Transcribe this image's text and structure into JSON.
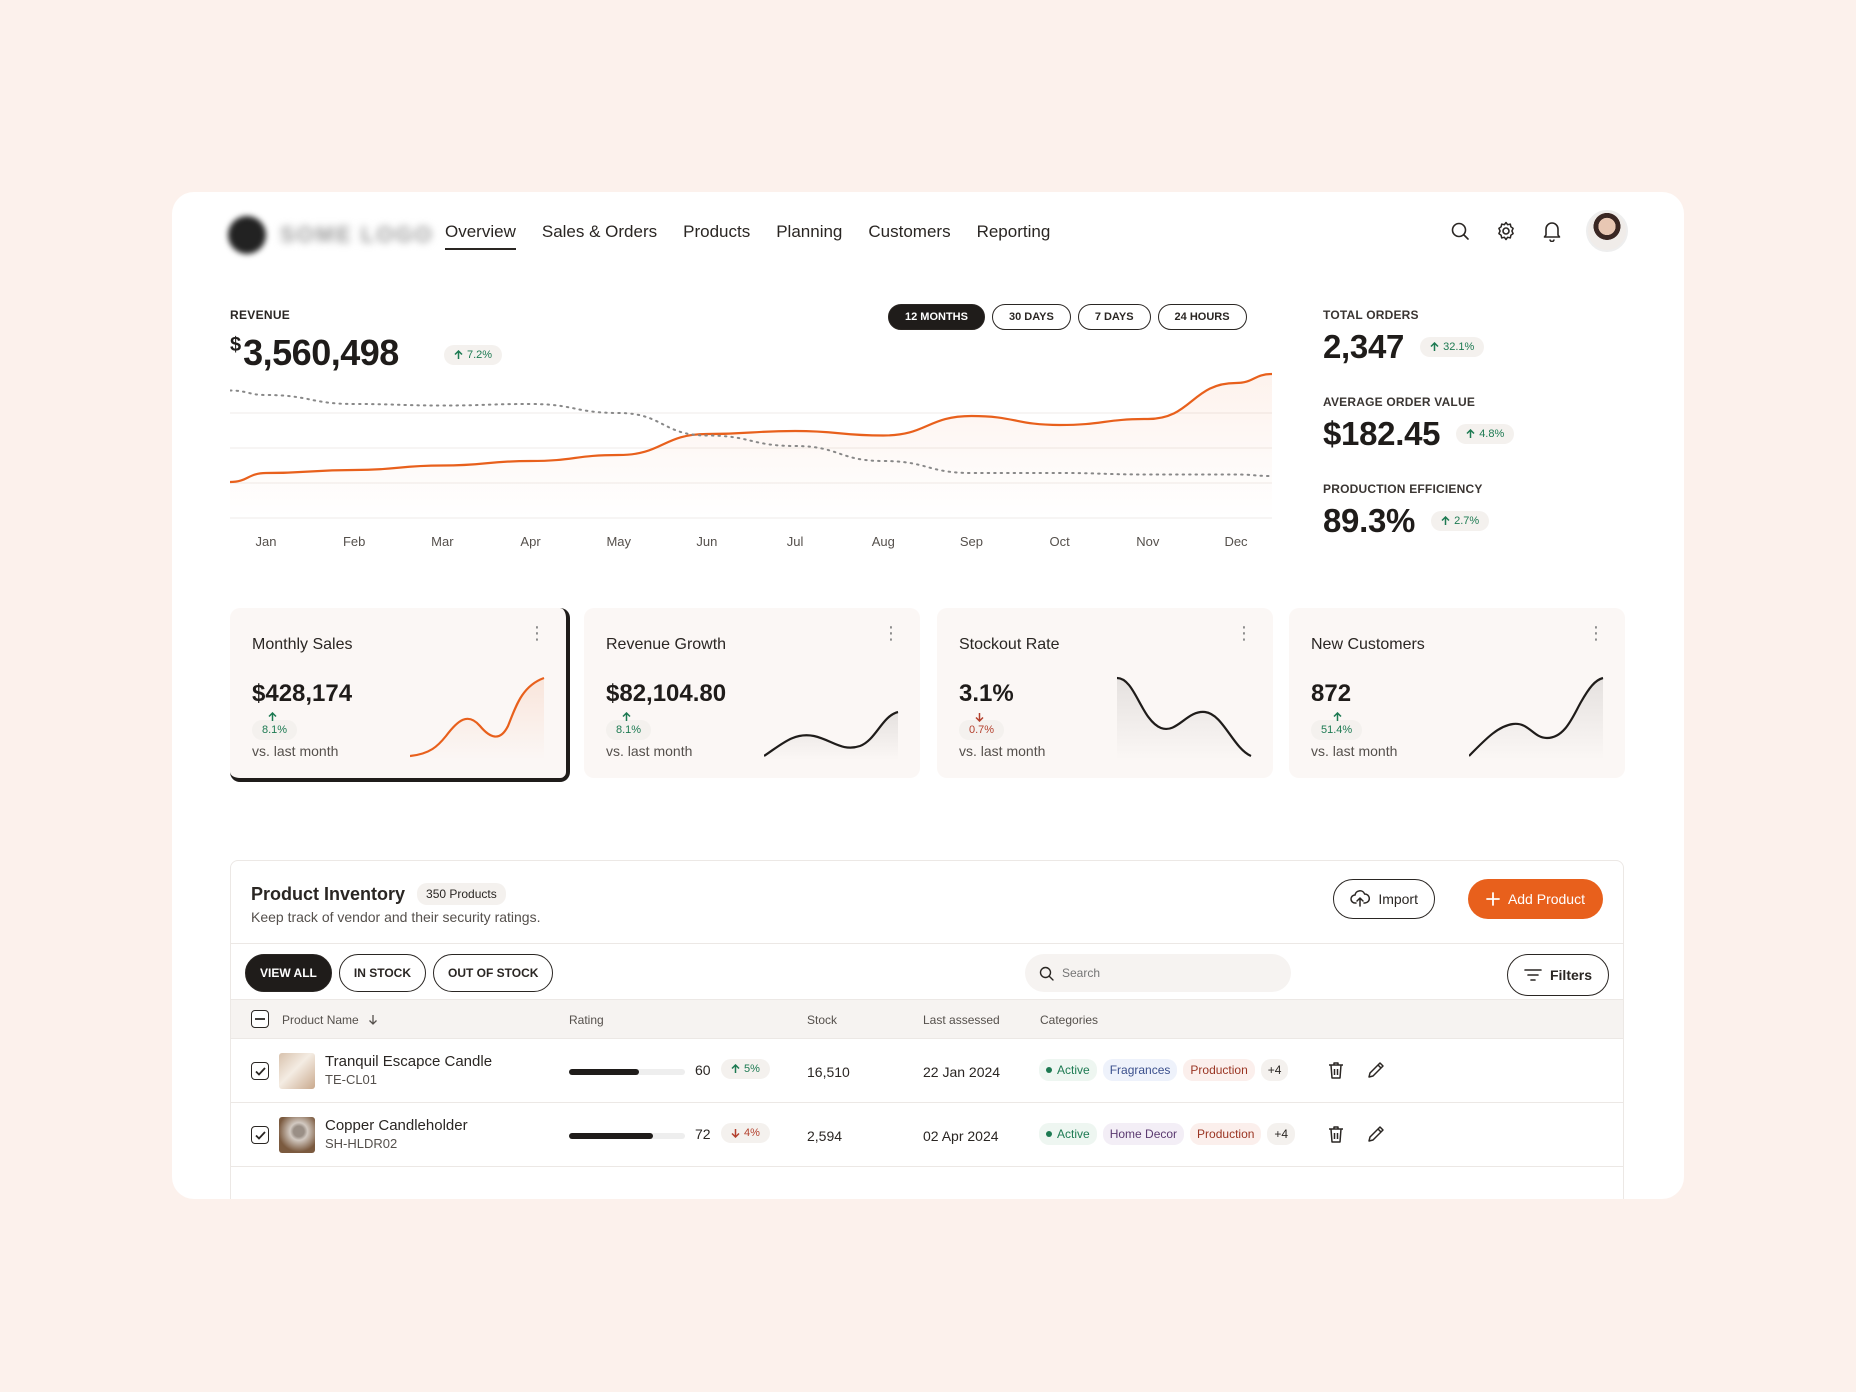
{
  "nav": {
    "items": [
      {
        "label": "Overview",
        "active": true
      },
      {
        "label": "Sales & Orders"
      },
      {
        "label": "Products"
      },
      {
        "label": "Planning"
      },
      {
        "label": "Customers"
      },
      {
        "label": "Reporting"
      }
    ],
    "icons": [
      "search-icon",
      "gear-icon",
      "bell-icon"
    ]
  },
  "revenue": {
    "label": "REVENUE",
    "currency": "$",
    "value": "3,560,498",
    "change": "7.2%",
    "ranges": [
      "12 MONTHS",
      "30 DAYS",
      "7 DAYS",
      "24 HOURS"
    ],
    "active_range": "12 MONTHS"
  },
  "chart_data": {
    "type": "line",
    "categories": [
      "Jan",
      "Feb",
      "Mar",
      "Apr",
      "May",
      "Jun",
      "Jul",
      "Aug",
      "Sep",
      "Oct",
      "Nov",
      "Dec"
    ],
    "series": [
      {
        "style": "solid",
        "color": "#e8601c",
        "values": [
          30,
          32,
          35,
          38,
          42,
          56,
          58,
          55,
          68,
          62,
          66,
          90
        ]
      },
      {
        "style": "dotted",
        "color": "#888888",
        "values": [
          82,
          76,
          75,
          76,
          70,
          55,
          48,
          38,
          30,
          30,
          29,
          29
        ]
      }
    ],
    "grid": true
  },
  "stats": [
    {
      "label": "TOTAL ORDERS",
      "value": "2,347",
      "change": "32.1%"
    },
    {
      "label": "AVERAGE ORDER VALUE",
      "value": "$182.45",
      "change": "4.8%"
    },
    {
      "label": "PRODUCTION EFFICIENCY",
      "value": "89.3%",
      "change": "2.7%"
    }
  ],
  "cards": [
    {
      "title": "Monthly Sales",
      "value": "$428,174",
      "change": "8.1%",
      "direction": "up",
      "sub": "vs. last month",
      "color": "#e8601c"
    },
    {
      "title": "Revenue Growth",
      "value": "$82,104.80",
      "change": "8.1%",
      "direction": "up",
      "sub": "vs. last month",
      "color": "#1f1c1a"
    },
    {
      "title": "Stockout Rate",
      "value": "3.1%",
      "change": "0.7%",
      "direction": "down",
      "sub": "vs. last month",
      "color": "#1f1c1a"
    },
    {
      "title": "New Customers",
      "value": "872",
      "change": "51.4%",
      "direction": "up",
      "sub": "vs. last month",
      "color": "#1f1c1a"
    }
  ],
  "inventory": {
    "title": "Product Inventory",
    "count": "350 Products",
    "subtitle": "Keep track of vendor and their security ratings.",
    "import_label": "Import",
    "add_label": "Add Product",
    "filters": [
      "VIEW ALL",
      "IN STOCK",
      "OUT OF STOCK"
    ],
    "search_placeholder": "Search",
    "filters_label": "Filters",
    "columns": [
      "Product Name",
      "Rating",
      "Stock",
      "Last assessed",
      "Categories"
    ],
    "rows": [
      {
        "name": "Tranquil Escapce Candle",
        "sku": "TE-CL01",
        "rating": "60",
        "rating_fraction": 0.6,
        "change": "5%",
        "direction": "up",
        "stock": "16,510",
        "last_assessed": "22 Jan 2024",
        "tags": [
          {
            "text": "Active",
            "kind": "active"
          },
          {
            "text": "Fragrances",
            "kind": "blue"
          },
          {
            "text": "Production",
            "kind": "red"
          },
          {
            "text": "+4",
            "kind": "more"
          }
        ]
      },
      {
        "name": "Copper Candleholder",
        "sku": "SH-HLDR02",
        "rating": "72",
        "rating_fraction": 0.72,
        "change": "4%",
        "direction": "down",
        "stock": "2,594",
        "last_assessed": "02 Apr 2024",
        "tags": [
          {
            "text": "Active",
            "kind": "active"
          },
          {
            "text": "Home Decor",
            "kind": "purple"
          },
          {
            "text": "Production",
            "kind": "red"
          },
          {
            "text": "+4",
            "kind": "more"
          }
        ]
      }
    ]
  }
}
